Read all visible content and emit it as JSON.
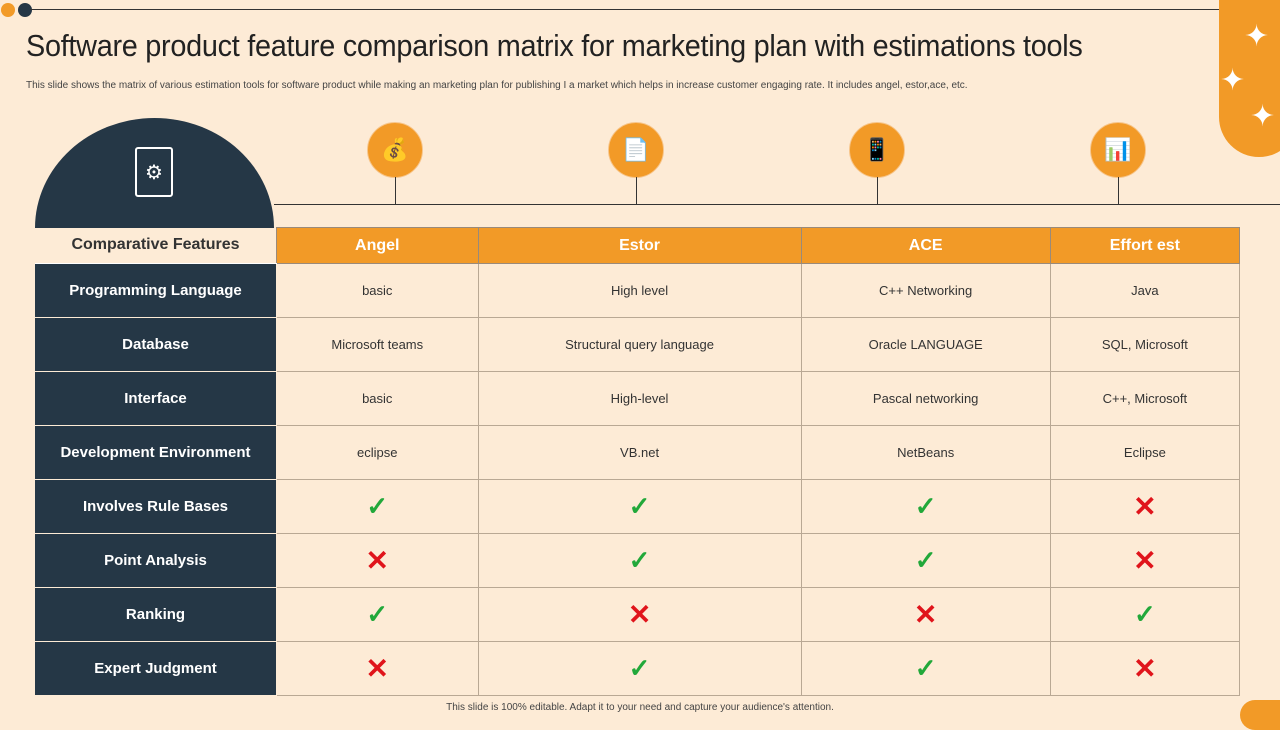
{
  "title": "Software product feature comparison matrix for marketing plan with estimations tools",
  "subtitle": "This slide shows the matrix of various estimation tools for software product while making an marketing plan for publishing I a market which helps in increase customer engaging rate. It includes angel, estor,ace, etc.",
  "footer": "This slide is 100% editable. Adapt it to your need and capture your audience's attention.",
  "colors": {
    "accent": "#f29a27",
    "navy": "#253746",
    "background": "#fdebd6",
    "check": "#22a83a",
    "cross": "#e0141b"
  },
  "icons": {
    "check": "✓",
    "cross": "✕"
  },
  "table": {
    "corner": "Comparative Features",
    "columns": [
      "Angel",
      "Estor",
      "ACE",
      "Effort est"
    ],
    "column_icons": [
      "money-bag-crown-icon",
      "document-gear-icon",
      "devices-icon",
      "monitor-chart-gear-icon"
    ],
    "rows": [
      {
        "label": "Programming Language",
        "cells": [
          "basic",
          "High level",
          "C++ Networking",
          "Java"
        ]
      },
      {
        "label": "Database",
        "cells": [
          "Microsoft teams",
          "Structural query language",
          "Oracle LANGUAGE",
          "SQL, Microsoft"
        ]
      },
      {
        "label": "Interface",
        "cells": [
          "basic",
          "High-level",
          "Pascal networking",
          "C++, Microsoft"
        ]
      },
      {
        "label": "Development Environment",
        "cells": [
          "eclipse",
          "VB.net",
          "NetBeans",
          "Eclipse"
        ]
      },
      {
        "label": "Involves Rule Bases",
        "marks": [
          true,
          true,
          true,
          false
        ]
      },
      {
        "label": "Point Analysis",
        "marks": [
          false,
          true,
          true,
          false
        ]
      },
      {
        "label": "Ranking",
        "marks": [
          true,
          false,
          false,
          true
        ]
      },
      {
        "label": "Expert Judgment",
        "marks": [
          false,
          true,
          true,
          false
        ]
      }
    ]
  }
}
